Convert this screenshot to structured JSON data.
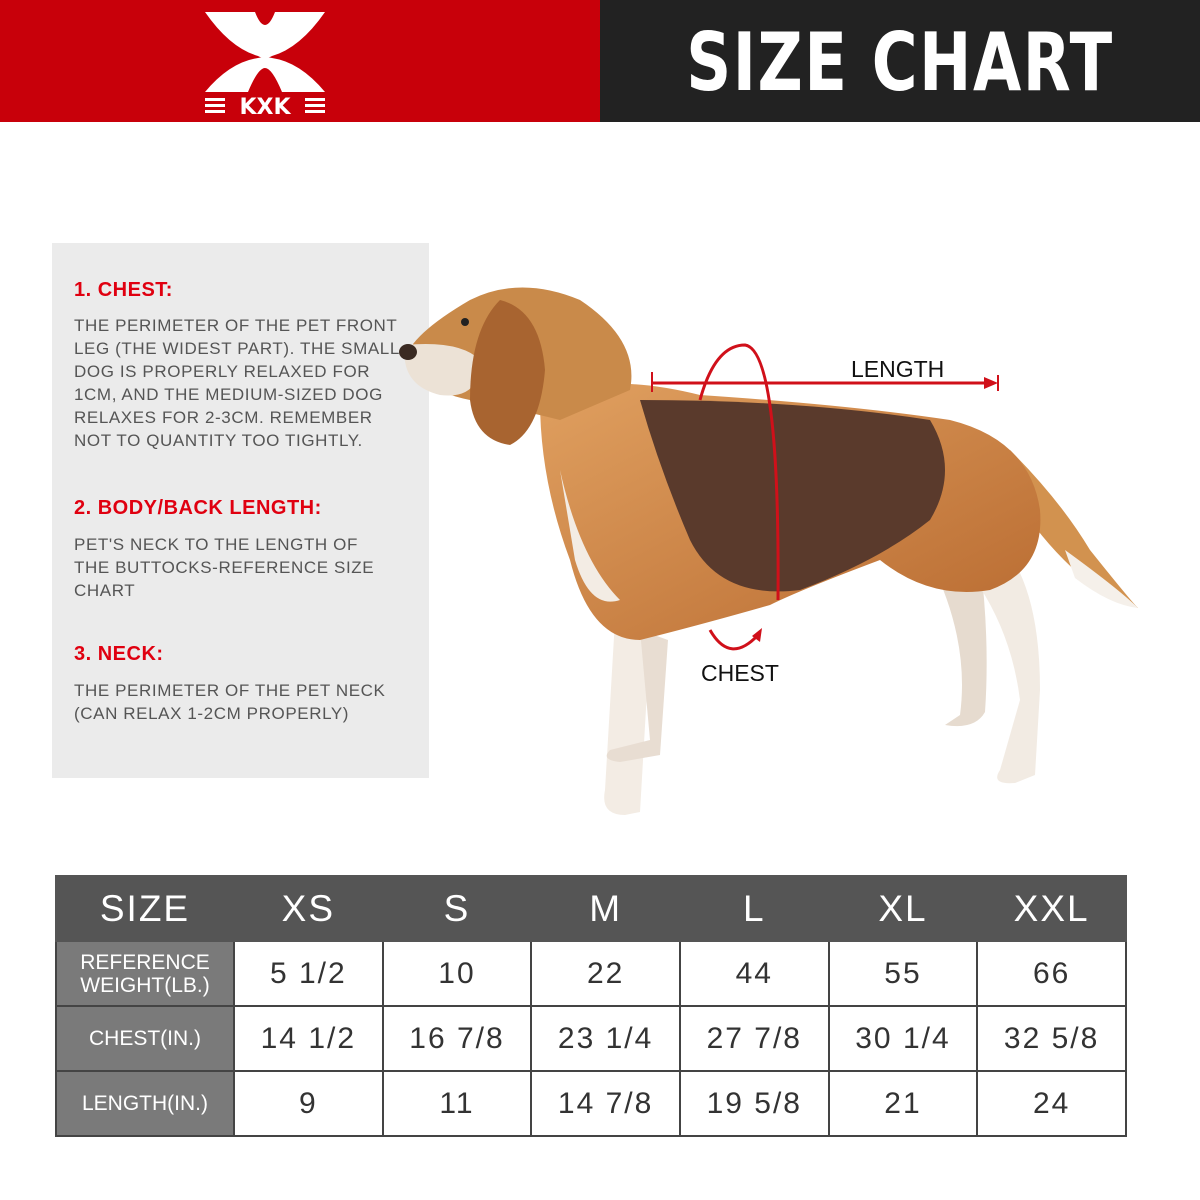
{
  "brand": {
    "logo_text": "KXK",
    "color": "#c8000a"
  },
  "title": "SIZE CHART",
  "guide": [
    {
      "heading": "1. CHEST:",
      "text": "THE PERIMETER OF THE PET FRONT\nLEG (THE WIDEST PART). THE SMALL\nDOG IS PROPERLY RELAXED FOR\n1CM, AND THE MEDIUM-SIZED DOG\nRELAXES FOR 2-3CM. REMEMBER\nNOT TO QUANTITY TOO TIGHTLY."
    },
    {
      "heading": "2. BODY/BACK LENGTH:",
      "text": "PET'S NECK TO THE LENGTH OF\nTHE BUTTOCKS-REFERENCE SIZE\nCHART"
    },
    {
      "heading": "3. NECK:",
      "text": "THE PERIMETER OF THE PET NECK\n (CAN RELAX 1-2CM PROPERLY)"
    }
  ],
  "diagram": {
    "length_label": "LENGTH",
    "chest_label": "CHEST"
  },
  "table": {
    "headers": [
      "SIZE",
      "XS",
      "S",
      "M",
      "L",
      "XL",
      "XXL"
    ],
    "rows": [
      {
        "label": "REFERENCE WEIGHT(LB.)",
        "values": [
          "5 1/2",
          "10",
          "22",
          "44",
          "55",
          "66"
        ]
      },
      {
        "label": "CHEST(IN.)",
        "values": [
          "14 1/2",
          "16 7/8",
          "23 1/4",
          "27 7/8",
          "30 1/4",
          "32 5/8"
        ]
      },
      {
        "label": "LENGTH(IN.)",
        "values": [
          "9",
          "11",
          "14 7/8",
          "19 5/8",
          "21",
          "24"
        ]
      }
    ]
  }
}
